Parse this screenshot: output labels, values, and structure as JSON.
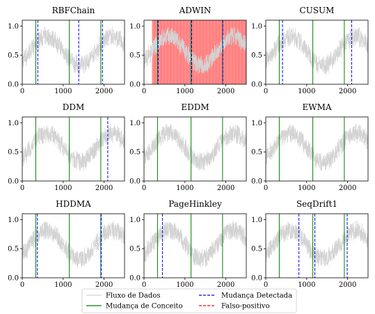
{
  "chart_data": [
    {
      "type": "line",
      "title": "RBFChain",
      "xlim": [
        0,
        2500
      ],
      "ylim": [
        0,
        1.1
      ],
      "x_ticks": [
        "0",
        "1000",
        "2000"
      ],
      "y_ticks": [
        "0.0",
        "0.5",
        "1.0"
      ],
      "concept_changes": [
        330,
        1150,
        1920
      ],
      "detected_changes": [
        380,
        1380,
        1960
      ],
      "false_positive_regions": [],
      "series": [
        {
          "name": "Fluxo de Dados",
          "type": "noisy-periodic",
          "low": 0.3,
          "high": 0.85
        }
      ]
    },
    {
      "type": "line",
      "title": "ADWIN",
      "xlim": [
        0,
        2500
      ],
      "ylim": [
        0,
        1.1
      ],
      "x_ticks": [
        "0",
        "1000",
        "2000"
      ],
      "y_ticks": [
        "0.0",
        "0.5",
        "1.0"
      ],
      "concept_changes": [
        330,
        1150,
        1920
      ],
      "detected_changes": [
        345,
        1165,
        1925
      ],
      "false_positive_regions": [
        [
          200,
          2500
        ]
      ],
      "series": [
        {
          "name": "Fluxo de Dados",
          "type": "noisy-periodic",
          "low": 0.3,
          "high": 0.85
        }
      ]
    },
    {
      "type": "line",
      "title": "CUSUM",
      "xlim": [
        0,
        2500
      ],
      "ylim": [
        0,
        1.1
      ],
      "x_ticks": [
        "0",
        "1000",
        "2000"
      ],
      "y_ticks": [
        "0.0",
        "0.5",
        "1.0"
      ],
      "concept_changes": [
        330,
        1150,
        1920
      ],
      "detected_changes": [
        410,
        2100
      ],
      "false_positive_regions": [],
      "series": [
        {
          "name": "Fluxo de Dados",
          "type": "noisy-periodic",
          "low": 0.3,
          "high": 0.85
        }
      ]
    },
    {
      "type": "line",
      "title": "DDM",
      "xlim": [
        0,
        2500
      ],
      "ylim": [
        0,
        1.1
      ],
      "x_ticks": [
        "0",
        "1000",
        "2000"
      ],
      "y_ticks": [
        "0.0",
        "0.5",
        "1.0"
      ],
      "concept_changes": [
        330,
        1150,
        1920
      ],
      "detected_changes": [
        2090
      ],
      "false_positive_regions": [],
      "series": [
        {
          "name": "Fluxo de Dados",
          "type": "noisy-periodic",
          "low": 0.3,
          "high": 0.85
        }
      ]
    },
    {
      "type": "line",
      "title": "EDDM",
      "xlim": [
        0,
        2500
      ],
      "ylim": [
        0,
        1.1
      ],
      "x_ticks": [
        "0",
        "1000",
        "2000"
      ],
      "y_ticks": [
        "0.0",
        "0.5",
        "1.0"
      ],
      "concept_changes": [
        330,
        1150,
        1920
      ],
      "detected_changes": [],
      "false_positive_regions": [],
      "series": [
        {
          "name": "Fluxo de Dados",
          "type": "noisy-periodic",
          "low": 0.3,
          "high": 0.85
        }
      ]
    },
    {
      "type": "line",
      "title": "EWMA",
      "xlim": [
        0,
        2500
      ],
      "ylim": [
        0,
        1.1
      ],
      "x_ticks": [
        "0",
        "1000",
        "2000"
      ],
      "y_ticks": [
        "0.0",
        "0.5",
        "1.0"
      ],
      "concept_changes": [
        330,
        1150,
        1920
      ],
      "detected_changes": [],
      "false_positive_regions": [],
      "series": [
        {
          "name": "Fluxo de Dados",
          "type": "noisy-periodic",
          "low": 0.3,
          "high": 0.85
        }
      ]
    },
    {
      "type": "line",
      "title": "HDDMA",
      "xlim": [
        0,
        2500
      ],
      "ylim": [
        0,
        1.1
      ],
      "x_ticks": [
        "0",
        "1000",
        "2000"
      ],
      "y_ticks": [
        "0.0",
        "0.5",
        "1.0"
      ],
      "concept_changes": [
        330,
        1150,
        1920
      ],
      "detected_changes": [
        370,
        1930
      ],
      "false_positive_regions": [],
      "series": [
        {
          "name": "Fluxo de Dados",
          "type": "noisy-periodic",
          "low": 0.3,
          "high": 0.85
        }
      ]
    },
    {
      "type": "line",
      "title": "PageHinkley",
      "xlim": [
        0,
        2500
      ],
      "ylim": [
        0,
        1.1
      ],
      "x_ticks": [
        "0",
        "1000",
        "2000"
      ],
      "y_ticks": [
        "0.0",
        "0.5",
        "1.0"
      ],
      "concept_changes": [
        330,
        1150,
        1920
      ],
      "detected_changes": [
        450
      ],
      "false_positive_regions": [],
      "series": [
        {
          "name": "Fluxo de Dados",
          "type": "noisy-periodic",
          "low": 0.3,
          "high": 0.85
        }
      ]
    },
    {
      "type": "line",
      "title": "SeqDrift1",
      "xlim": [
        0,
        2500
      ],
      "ylim": [
        0,
        1.1
      ],
      "x_ticks": [
        "0",
        "1000",
        "2000"
      ],
      "y_ticks": [
        "0.0",
        "0.5",
        "1.0"
      ],
      "concept_changes": [
        330,
        1150,
        1920
      ],
      "detected_changes": [
        810,
        1200,
        1990
      ],
      "false_positive_regions": [],
      "series": [
        {
          "name": "Fluxo de Dados",
          "type": "noisy-periodic",
          "low": 0.3,
          "high": 0.85
        }
      ]
    }
  ],
  "legend": {
    "entries": [
      {
        "label": "Fluxo de Dados",
        "color": "#d3d3d3",
        "style": "solid"
      },
      {
        "label": "Mudança de Conceito",
        "color": "#008000",
        "style": "solid"
      },
      {
        "label": "Mudança Detectada",
        "color": "#0000ff",
        "style": "dashed"
      },
      {
        "label": "Falso-positivo",
        "color": "#ff0000",
        "style": "dashed"
      }
    ]
  },
  "colors": {
    "stream": "#d3d3d3",
    "concept": "#008000",
    "detected": "#0000ff",
    "false_positive": "#ff0000"
  }
}
